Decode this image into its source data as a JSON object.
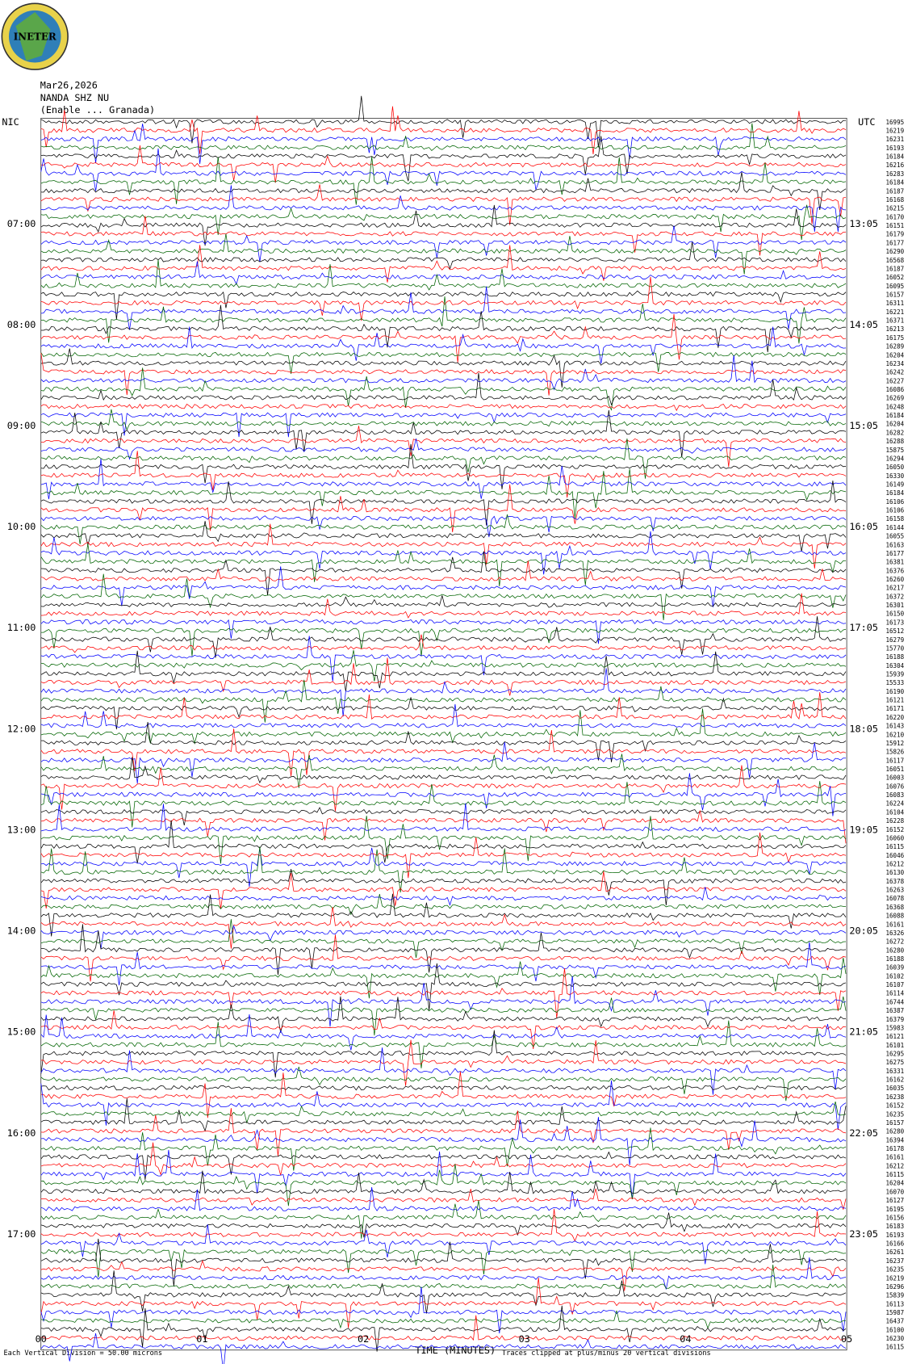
{
  "header": {
    "logo": "INETER",
    "date": "Mar26,2026",
    "station": "NANDA SHZ NU",
    "location": "(Enable ... Granada)"
  },
  "left_axis": {
    "title": "NIC",
    "labels": [
      "07:00",
      "08:00",
      "09:00",
      "10:00",
      "11:00",
      "12:00",
      "13:00",
      "14:00",
      "15:00",
      "16:00",
      "17:00"
    ]
  },
  "right_axis": {
    "title": "UTC",
    "labels": [
      "13:05",
      "14:05",
      "15:05",
      "16:05",
      "17:05",
      "18:05",
      "19:05",
      "20:05",
      "21:05",
      "22:05",
      "23:05"
    ]
  },
  "trace_counts": [
    16995,
    16219,
    16231,
    16193,
    16184,
    16216,
    16283,
    16184,
    16187,
    16168,
    16215,
    16170,
    16151,
    16179,
    16177,
    16290,
    16568,
    16187,
    16052,
    16095,
    16157,
    16311,
    16221,
    16371,
    16213,
    16175,
    16289,
    16204,
    16234,
    16242,
    16227,
    16086,
    16269,
    16248,
    16184,
    16204,
    16282,
    16288,
    15875,
    16294,
    16050,
    16330,
    16149,
    16184,
    16106,
    16106,
    16158,
    16144,
    16055,
    16163,
    16177,
    16381,
    16376,
    16260,
    16217,
    16372,
    16301,
    16150,
    16173,
    16512,
    16279,
    15770,
    16188,
    16304,
    15939,
    15533,
    16190,
    16121,
    16171,
    16220,
    16143,
    16210,
    15912,
    15826,
    16117,
    16051,
    16003,
    16076,
    16083,
    16224,
    16104,
    16228,
    16152,
    16060,
    16115,
    16046,
    16212,
    16130,
    16378,
    16263,
    16078,
    16368,
    16088,
    16161,
    16326,
    16272,
    16280,
    16188,
    16039,
    16102,
    16107,
    16114,
    16744,
    16387,
    16379,
    15983,
    16121,
    16101,
    16295,
    16275,
    16331,
    16162,
    16035,
    16238,
    16152,
    16235,
    16157,
    16280,
    16394,
    16178,
    16161,
    16212,
    16115,
    16204,
    16070,
    16127,
    16195,
    16156,
    16183,
    16193,
    16166,
    16261,
    16237,
    16235,
    16219,
    16296,
    15839,
    16113,
    15987,
    16437,
    16100,
    16230,
    16115
  ],
  "bottom_axis": {
    "title": "TIME (MINUTES)",
    "labels": [
      "00",
      "01",
      "02",
      "03",
      "04",
      "05"
    ]
  },
  "footer": {
    "scale": "Each Vertical Division = 50.00 microns",
    "clip": "Traces clipped at plus/minus 20 vertical divisions"
  }
}
